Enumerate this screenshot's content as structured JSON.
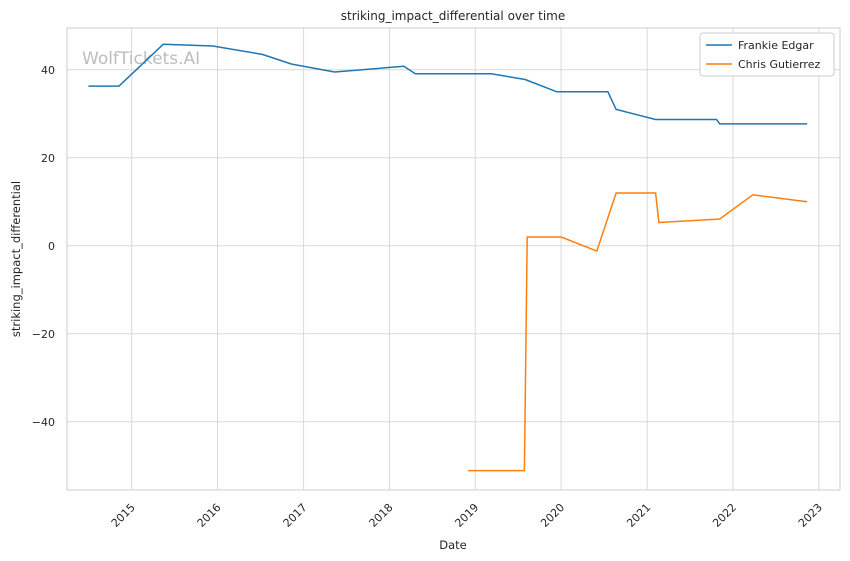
{
  "chart_data": {
    "type": "line",
    "title": "striking_impact_differential over time",
    "xlabel": "Date",
    "ylabel": "striking_impact_differential",
    "watermark": "WolfTickets.AI",
    "x_ticks": [
      "2015",
      "2016",
      "2017",
      "2018",
      "2019",
      "2020",
      "2021",
      "2022",
      "2023"
    ],
    "y_ticks": [
      40,
      20,
      0,
      -20,
      -40
    ],
    "ylim": [
      -55.5,
      49.5
    ],
    "xlim": [
      "2014-04-01",
      "2023-04-01"
    ],
    "grid": true,
    "legend_position": "top-right",
    "series": [
      {
        "name": "Frankie Edgar",
        "color": "#1f77b4",
        "points": [
          [
            "2014-07-01",
            36.3
          ],
          [
            "2014-11-08",
            36.3
          ],
          [
            "2015-05-15",
            45.8
          ],
          [
            "2015-12-12",
            45.4
          ],
          [
            "2016-07-09",
            43.5
          ],
          [
            "2016-11-12",
            41.3
          ],
          [
            "2017-05-13",
            39.5
          ],
          [
            "2018-03-03",
            40.8
          ],
          [
            "2018-04-21",
            39.1
          ],
          [
            "2019-03-10",
            39.1
          ],
          [
            "2019-08-01",
            37.8
          ],
          [
            "2019-12-14",
            35.0
          ],
          [
            "2020-07-18",
            35.0
          ],
          [
            "2020-08-22",
            31.0
          ],
          [
            "2021-02-06",
            28.7
          ],
          [
            "2021-10-23",
            28.7
          ],
          [
            "2021-11-06",
            27.7
          ],
          [
            "2022-11-12",
            27.7
          ]
        ]
      },
      {
        "name": "Chris Gutierrez",
        "color": "#ff7f0e",
        "points": [
          [
            "2018-12-01",
            -51.1
          ],
          [
            "2019-07-29",
            -51.1
          ],
          [
            "2019-08-10",
            2.0
          ],
          [
            "2020-01-01",
            2.0
          ],
          [
            "2020-06-01",
            -1.2
          ],
          [
            "2020-08-22",
            12.0
          ],
          [
            "2021-02-06",
            12.0
          ],
          [
            "2021-02-20",
            5.3
          ],
          [
            "2021-11-06",
            6.1
          ],
          [
            "2022-03-26",
            11.6
          ],
          [
            "2022-11-12",
            10.0
          ]
        ]
      }
    ]
  }
}
